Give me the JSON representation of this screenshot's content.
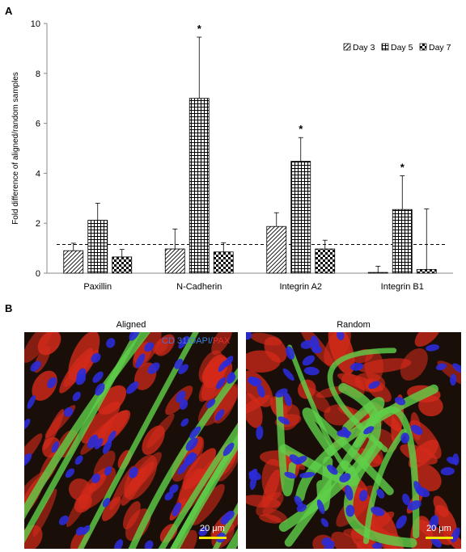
{
  "panels": {
    "a": "A",
    "b": "B"
  },
  "chart_data": {
    "type": "bar",
    "ylabel": "Fold difference of aligned/random samples",
    "xlabel": "",
    "ylim": [
      0,
      10
    ],
    "yticks": [
      "0",
      "2",
      "4",
      "6",
      "8",
      "10"
    ],
    "categories": [
      "Paxillin",
      "N-Cadherin",
      "Integrin A2",
      "Integrin B1"
    ],
    "series": [
      {
        "name": "Day 3",
        "pattern": "diagonal-hatch",
        "values": [
          0.9,
          0.97,
          1.87,
          0.03
        ],
        "errors": [
          0.3,
          0.8,
          0.55,
          0.25
        ]
      },
      {
        "name": "Day 5",
        "pattern": "grid",
        "values": [
          2.12,
          7.0,
          4.48,
          2.55
        ],
        "errors": [
          0.68,
          2.45,
          0.95,
          1.35
        ]
      },
      {
        "name": "Day 7",
        "pattern": "checker",
        "values": [
          0.65,
          0.85,
          0.97,
          0.15
        ],
        "errors": [
          0.3,
          0.37,
          0.35,
          2.42
        ]
      }
    ],
    "reference_line": 1.15,
    "significance": [
      {
        "category": "N-Cadherin",
        "series": "Day 5",
        "label": "*"
      },
      {
        "category": "Integrin A2",
        "series": "Day 5",
        "label": "*"
      },
      {
        "category": "Integrin B1",
        "series": "Day 5",
        "label": "*"
      }
    ],
    "legend": "top-right",
    "grid": false
  },
  "micrographs": {
    "left_title": "Aligned",
    "right_title": "Random",
    "stain_label_prefix": "CD 31/",
    "stain_label_mid": "DAPI/",
    "stain_label_suffix": "PAX",
    "scale_bar": "20 μm",
    "colors": {
      "red": "#d42a1a",
      "green": "#5fd04a",
      "blue": "#2b2bd8",
      "dark": "#1a0f08"
    }
  }
}
